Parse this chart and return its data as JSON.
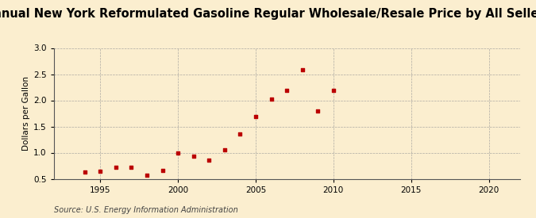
{
  "title": "Annual New York Reformulated Gasoline Regular Wholesale/Resale Price by All Sellers",
  "ylabel": "Dollars per Gallon",
  "source": "Source: U.S. Energy Information Administration",
  "background_color": "#fbeecf",
  "data": [
    [
      1994,
      0.63
    ],
    [
      1995,
      0.64
    ],
    [
      1996,
      0.72
    ],
    [
      1997,
      0.72
    ],
    [
      1998,
      0.57
    ],
    [
      1999,
      0.66
    ],
    [
      2000,
      1.0
    ],
    [
      2001,
      0.93
    ],
    [
      2002,
      0.86
    ],
    [
      2003,
      1.06
    ],
    [
      2004,
      1.36
    ],
    [
      2005,
      1.69
    ],
    [
      2006,
      2.02
    ],
    [
      2007,
      2.19
    ],
    [
      2008,
      2.59
    ],
    [
      2009,
      1.8
    ],
    [
      2010,
      2.19
    ]
  ],
  "xlim": [
    1992,
    2022
  ],
  "ylim": [
    0.5,
    3.0
  ],
  "xticks": [
    1995,
    2000,
    2005,
    2010,
    2015,
    2020
  ],
  "yticks": [
    0.5,
    1.0,
    1.5,
    2.0,
    2.5,
    3.0
  ],
  "marker_color": "#bb0000",
  "marker": "s",
  "marker_size": 3.5,
  "grid_color": "#999999",
  "title_fontsize": 10.5,
  "ylabel_fontsize": 7.5,
  "tick_fontsize": 7.5,
  "source_fontsize": 7.0
}
